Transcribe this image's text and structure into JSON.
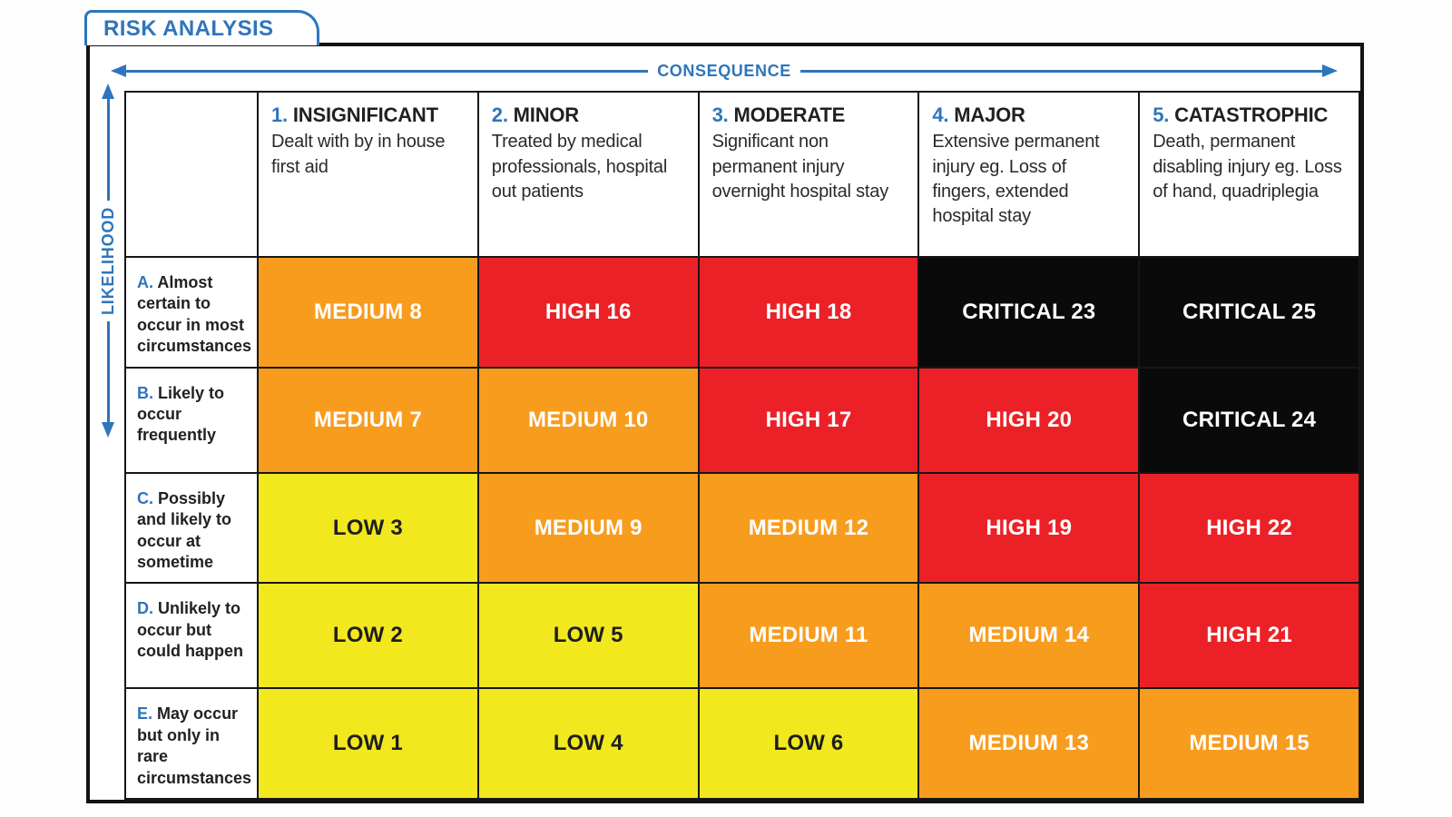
{
  "tab_title": "RISK ANALYSIS",
  "axes": {
    "horizontal": "CONSEQUENCE",
    "vertical": "LIKELIHOOD"
  },
  "colors": {
    "accent_blue": "#2E75BC",
    "low_yellow": "#F2E81E",
    "medium_orange": "#F89C1E",
    "high_red": "#EC2127",
    "critical_black": "#0A0A0A",
    "text_dark": "#231F20"
  },
  "matrix": {
    "columns": [
      {
        "prefix": "1.",
        "title": "INSIGNIFICANT",
        "description": "Dealt with by in house first aid"
      },
      {
        "prefix": "2.",
        "title": "MINOR",
        "description": "Treated by medical professionals, hospital out patients"
      },
      {
        "prefix": "3.",
        "title": "MODERATE",
        "description": "Significant non permanent injury overnight hospital stay"
      },
      {
        "prefix": "4.",
        "title": "MAJOR",
        "description": "Extensive permanent injury eg. Loss of fingers, extended hospital stay"
      },
      {
        "prefix": "5.",
        "title": "CATASTROPHIC",
        "description": "Death, permanent disabling injury eg. Loss of hand, quadriplegia"
      }
    ],
    "rows": [
      {
        "prefix": "A.",
        "label": "Almost certain to occur in most circumstances",
        "cells": [
          {
            "label": "MEDIUM 8",
            "level": "medium"
          },
          {
            "label": "HIGH 16",
            "level": "high"
          },
          {
            "label": "HIGH 18",
            "level": "high"
          },
          {
            "label": "CRITICAL 23",
            "level": "critical"
          },
          {
            "label": "CRITICAL 25",
            "level": "critical"
          }
        ]
      },
      {
        "prefix": "B.",
        "label": "Likely to occur frequently",
        "cells": [
          {
            "label": "MEDIUM 7",
            "level": "medium"
          },
          {
            "label": "MEDIUM 10",
            "level": "medium"
          },
          {
            "label": "HIGH 17",
            "level": "high"
          },
          {
            "label": "HIGH 20",
            "level": "high"
          },
          {
            "label": "CRITICAL 24",
            "level": "critical"
          }
        ]
      },
      {
        "prefix": "C.",
        "label": "Possibly and likely to occur at sometime",
        "cells": [
          {
            "label": "LOW 3",
            "level": "low"
          },
          {
            "label": "MEDIUM 9",
            "level": "medium"
          },
          {
            "label": "MEDIUM 12",
            "level": "medium"
          },
          {
            "label": "HIGH 19",
            "level": "high"
          },
          {
            "label": "HIGH 22",
            "level": "high"
          }
        ]
      },
      {
        "prefix": "D.",
        "label": "Unlikely to occur but could happen",
        "cells": [
          {
            "label": "LOW 2",
            "level": "low"
          },
          {
            "label": "LOW 5",
            "level": "low"
          },
          {
            "label": "MEDIUM 11",
            "level": "medium"
          },
          {
            "label": "MEDIUM 14",
            "level": "medium"
          },
          {
            "label": "HIGH 21",
            "level": "high"
          }
        ]
      },
      {
        "prefix": "E.",
        "label": "May occur but only in rare circumstances",
        "cells": [
          {
            "label": "LOW 1",
            "level": "low"
          },
          {
            "label": "LOW 4",
            "level": "low"
          },
          {
            "label": "LOW 6",
            "level": "low"
          },
          {
            "label": "MEDIUM 13",
            "level": "medium"
          },
          {
            "label": "MEDIUM 15",
            "level": "medium"
          }
        ]
      }
    ]
  }
}
